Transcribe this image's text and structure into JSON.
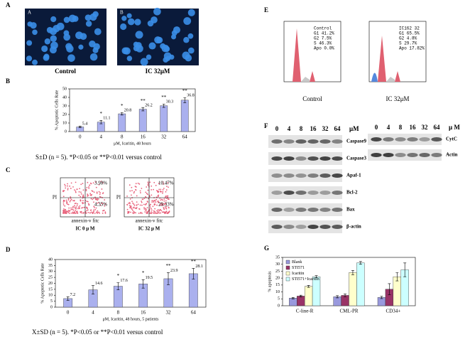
{
  "panel_letters": [
    "A",
    "B",
    "C",
    "D",
    "E",
    "F",
    "G"
  ],
  "panel_a": {
    "insets": [
      "A",
      "B"
    ],
    "captions": [
      "Control",
      "IC 32μM"
    ]
  },
  "panel_c": {
    "quadrants": [
      [
        "3.98%",
        "4.35%"
      ],
      [
        "10.47%",
        "29.33%"
      ]
    ],
    "x_label": "annexin-v fitc",
    "y_label": "PI",
    "captions": [
      "IC 0 μ M",
      "IC 32 μ M"
    ]
  },
  "panel_e": {
    "stats": [
      [
        "Control",
        "G1 41.2%",
        "G2 7.5%",
        "S 46.3%",
        "Apo 0.0%"
      ],
      [
        "IC162 32",
        "G1 65.5%",
        "G2 4.8%",
        "S 29.7%",
        "Apo 17.82%"
      ]
    ],
    "captions": [
      "Control",
      "IC 32μM"
    ]
  },
  "panel_f": {
    "left": {
      "doses": [
        "0",
        "4",
        "8",
        "16",
        "32",
        "64"
      ],
      "unit": "μM",
      "proteins": [
        "Caspase9",
        "Caspase3",
        "Apaf-1",
        "Bcl-2",
        "Bax",
        "β-actin"
      ]
    },
    "right": {
      "doses": [
        "0",
        "4",
        "8",
        "16",
        "32",
        "64"
      ],
      "unit": "μ M",
      "proteins": [
        "CytC",
        "Actin"
      ]
    }
  },
  "chart_data": [
    {
      "type": "bar",
      "x_label": "μM, Icaritin, 48 hours",
      "y_label": "% Apoptotic Cells Rate",
      "categories": [
        "0",
        "4",
        "8",
        "16",
        "32",
        "64"
      ],
      "values": [
        5.4,
        11.1,
        20.8,
        26.2,
        30.3,
        36.8
      ],
      "errors": [
        1,
        2,
        1.5,
        2,
        2,
        3
      ],
      "annotations": [
        null,
        "*",
        "*",
        "**",
        "**",
        "**"
      ],
      "color": "#aab0ee",
      "ylim": [
        0,
        50
      ],
      "yticks": [
        0,
        10,
        20,
        30,
        40,
        50
      ],
      "caption": "S±D (n = 5). *P<0.05 or **P<0.01 versus control"
    },
    {
      "type": "bar",
      "x_label": "μM, Icaritin, 48 hours, 5 patients",
      "y_label": "% Apoptotic Cells Rate",
      "categories": [
        "0",
        "4",
        "8",
        "16",
        "32",
        "64"
      ],
      "values": [
        7.2,
        14.6,
        17.6,
        19.5,
        23.9,
        28.1
      ],
      "errors": [
        1.5,
        3.5,
        3,
        3.5,
        5,
        4.5
      ],
      "annotations": [
        null,
        null,
        "*",
        "*",
        "**",
        "**"
      ],
      "color": "#aab0ee",
      "ylim": [
        0,
        40
      ],
      "yticks": [
        0,
        5,
        10,
        15,
        20,
        25,
        30,
        35,
        40
      ],
      "caption": "X±SD (n = 5). *P<0.05 or **P<0.01 versus control"
    },
    {
      "type": "bar",
      "y_label": "% apoptosis",
      "categories": [
        "C-line-R",
        "CML-PR",
        "CD34+"
      ],
      "series": [
        {
          "name": "Blank",
          "color": "#9999dd",
          "values": [
            5.5,
            6.5,
            6
          ],
          "errors": [
            0.5,
            0.8,
            0.8
          ]
        },
        {
          "name": "STI571",
          "color": "#993366",
          "values": [
            7,
            7.5,
            12
          ],
          "errors": [
            0.6,
            1,
            4
          ]
        },
        {
          "name": "Icaritin",
          "color": "#ffffcc",
          "values": [
            14,
            24,
            21
          ],
          "errors": [
            0.7,
            1.5,
            3
          ]
        },
        {
          "name": "STI571+Icaritin",
          "color": "#ccffff",
          "values": [
            21,
            31,
            26
          ],
          "errors": [
            0.8,
            1,
            5
          ]
        }
      ],
      "ylim": [
        0,
        35
      ],
      "yticks": [
        0,
        5,
        10,
        15,
        20,
        25,
        30,
        35
      ]
    }
  ]
}
